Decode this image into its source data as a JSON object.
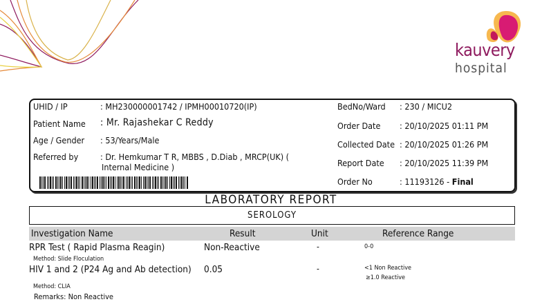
{
  "logo": {
    "brand": "kauvery",
    "sub": "hospital",
    "colors": {
      "brand": "#8e1a5e",
      "accent": "#e2336f",
      "orange": "#f5a623"
    }
  },
  "patient": {
    "uhid_label": "UHID / IP",
    "uhid_value": ": MH230000001742 / IPMH00010720(IP)",
    "name_label": "Patient Name",
    "name_value": ": Mr. Rajashekar C Reddy",
    "age_label": "Age / Gender",
    "age_value": ": 53/Years/Male",
    "ref_label": "Referred by",
    "ref_value_1": ": Dr. Hemkumar T R,  MBBS , D.Diab , MRCP(UK) (",
    "ref_value_2": "Internal Medicine )",
    "bed_label": "BedNo/Ward",
    "bed_value": ": 230 / MICU2",
    "order_date_label": "Order Date",
    "order_date_value": ": 20/10/2025 01:11 PM",
    "collected_label": "Collected Date",
    "collected_value": ": 20/10/2025 01:26 PM",
    "report_label": "Report Date",
    "report_value": ": 20/10/2025 11:39 PM",
    "order_no_label": "Order No",
    "order_no_value": ": 11193126 - ",
    "order_status": "Final"
  },
  "report": {
    "title": "LABORATORY REPORT",
    "section": "SEROLOGY",
    "columns": [
      "Investigation Name",
      "Result",
      "Unit",
      "Reference Range"
    ],
    "rows": [
      {
        "name": "RPR Test ( Rapid Plasma Reagin)",
        "result": "Non-Reactive",
        "unit": "-",
        "ref": [
          "0-0"
        ],
        "method": "Method: Slide Floculation"
      },
      {
        "name": "HIV 1 and 2 (P24 Ag and Ab detection)",
        "result": "0.05",
        "unit": "-",
        "ref": [
          "<1 Non Reactive",
          "≥1.0 Reactive"
        ],
        "method": "Method: CLIA"
      }
    ],
    "remarks": "Remarks: Non Reactive"
  }
}
